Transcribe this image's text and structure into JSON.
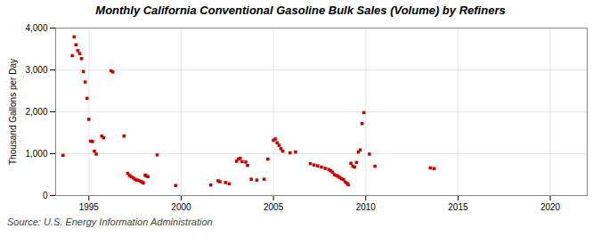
{
  "chart_data": {
    "type": "scatter",
    "title": "Monthly California Conventional Gasoline Bulk Sales (Volume) by Refiners",
    "ylabel": "Thousand Gallons per Day",
    "source": "Source: U.S. Energy Information Administration",
    "color": "#cc0000",
    "marker": "square",
    "grid": true,
    "xlim": [
      1993.2,
      2022.0
    ],
    "ylim": [
      0,
      4000
    ],
    "xticks": [
      1995,
      2000,
      2005,
      2010,
      2015,
      2020
    ],
    "yticks": [
      0,
      {
        "value": 1000,
        "label": "1,000"
      },
      {
        "value": 2000,
        "label": "2,000"
      },
      {
        "value": 3000,
        "label": "3,000"
      },
      {
        "value": 4000,
        "label": "4,000"
      }
    ],
    "x": [
      1993.6,
      1994.1,
      1994.2,
      1994.3,
      1994.4,
      1994.5,
      1994.6,
      1994.7,
      1994.8,
      1994.9,
      1995.0,
      1995.1,
      1995.2,
      1995.3,
      1995.4,
      1995.7,
      1995.8,
      1996.2,
      1996.3,
      1996.9,
      1997.1,
      1997.2,
      1997.3,
      1997.4,
      1997.5,
      1997.6,
      1997.7,
      1997.8,
      1997.9,
      1997.95,
      1998.05,
      1998.1,
      1998.2,
      1998.7,
      1999.7,
      2001.6,
      2002.0,
      2002.1,
      2002.4,
      2002.6,
      2003.0,
      2003.1,
      2003.2,
      2003.3,
      2003.5,
      2003.6,
      2003.8,
      2004.1,
      2004.5,
      2004.7,
      2005.0,
      2005.1,
      2005.2,
      2005.3,
      2005.4,
      2005.5,
      2005.9,
      2006.2,
      2007.0,
      2007.2,
      2007.4,
      2007.6,
      2007.8,
      2008.0,
      2008.1,
      2008.2,
      2008.3,
      2008.4,
      2008.5,
      2008.6,
      2008.7,
      2008.8,
      2008.9,
      2009.0,
      2009.05,
      2009.2,
      2009.3,
      2009.4,
      2009.5,
      2009.6,
      2009.7,
      2009.8,
      2009.9,
      2010.2,
      2010.5,
      2013.5,
      2013.7
    ],
    "values": [
      960,
      3340,
      3790,
      3600,
      3460,
      3390,
      3270,
      2960,
      2710,
      2320,
      1820,
      1300,
      1290,
      1060,
      990,
      1420,
      1380,
      2980,
      2950,
      1420,
      530,
      480,
      450,
      420,
      390,
      370,
      360,
      340,
      320,
      300,
      490,
      470,
      450,
      970,
      240,
      250,
      350,
      330,
      310,
      280,
      820,
      870,
      890,
      810,
      800,
      720,
      390,
      370,
      390,
      870,
      1320,
      1350,
      1260,
      1200,
      1120,
      1060,
      1020,
      1040,
      760,
      730,
      710,
      680,
      650,
      620,
      590,
      560,
      500,
      480,
      460,
      430,
      400,
      380,
      320,
      290,
      260,
      770,
      700,
      680,
      790,
      1040,
      1090,
      1720,
      1980,
      990,
      700,
      660,
      645
    ]
  }
}
